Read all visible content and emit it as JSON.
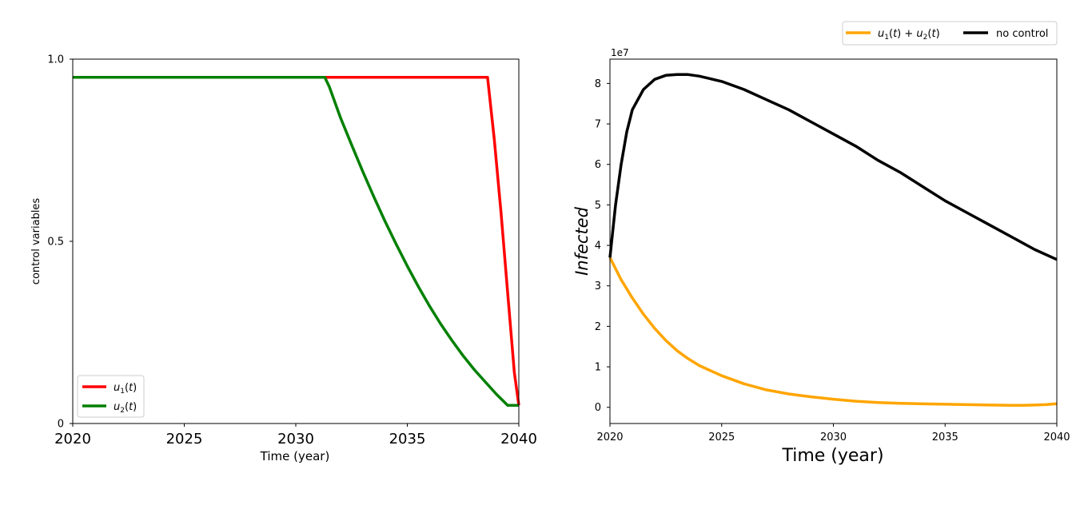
{
  "chart_data": [
    {
      "type": "line",
      "title": "",
      "xlabel": "Time (year)",
      "ylabel": "control variables",
      "xlim": [
        2020,
        2040
      ],
      "ylim": [
        0,
        1
      ],
      "xticks": [
        "2020",
        "2025",
        "2030",
        "2035",
        "2040"
      ],
      "yticks": [
        "0",
        "0.5",
        "1.0"
      ],
      "legend_position": "lower-left",
      "series": [
        {
          "name": "u1(t)",
          "color": "#ff0000",
          "x": [
            2020,
            2038.6,
            2038.9,
            2039.2,
            2039.5,
            2039.8,
            2040
          ],
          "y": [
            0.95,
            0.95,
            0.78,
            0.58,
            0.36,
            0.14,
            0.05
          ]
        },
        {
          "name": "u2(t)",
          "color": "#008000",
          "x": [
            2020,
            2031.3,
            2031.5,
            2032,
            2032.5,
            2033,
            2033.5,
            2034,
            2034.5,
            2035,
            2035.5,
            2036,
            2036.5,
            2037,
            2037.5,
            2038,
            2038.5,
            2039,
            2039.5,
            2040
          ],
          "y": [
            0.95,
            0.95,
            0.925,
            0.84,
            0.765,
            0.692,
            0.622,
            0.555,
            0.492,
            0.432,
            0.375,
            0.322,
            0.273,
            0.228,
            0.186,
            0.148,
            0.114,
            0.08,
            0.05,
            0.05
          ]
        }
      ]
    },
    {
      "type": "line",
      "title": "",
      "xlabel": "Time (year)",
      "ylabel": "Infected",
      "xlim": [
        2020,
        2040
      ],
      "ylim": [
        -0.4,
        8.6
      ],
      "y_scale_label": "1e7",
      "xticks": [
        "2020",
        "2025",
        "2030",
        "2035",
        "2040"
      ],
      "yticks": [
        "0",
        "1",
        "2",
        "3",
        "4",
        "5",
        "6",
        "7",
        "8"
      ],
      "legend_position": "upper-right outside",
      "series": [
        {
          "name": "u1(t) + u2(t)",
          "color": "#ffa500",
          "x": [
            2020,
            2020.5,
            2021,
            2021.5,
            2022,
            2022.5,
            2023,
            2023.5,
            2024,
            2025,
            2026,
            2027,
            2028,
            2029,
            2030,
            2031,
            2032,
            2033,
            2034,
            2035,
            2036,
            2037,
            2038,
            2038.5,
            2039,
            2039.5,
            2040
          ],
          "y": [
            3.7,
            3.15,
            2.7,
            2.3,
            1.95,
            1.65,
            1.4,
            1.2,
            1.03,
            0.78,
            0.58,
            0.43,
            0.33,
            0.26,
            0.2,
            0.15,
            0.12,
            0.1,
            0.085,
            0.075,
            0.065,
            0.055,
            0.05,
            0.05,
            0.055,
            0.065,
            0.09
          ]
        },
        {
          "name": "no control",
          "color": "#000000",
          "x": [
            2020,
            2020.25,
            2020.5,
            2020.75,
            2021,
            2021.5,
            2022,
            2022.5,
            2023,
            2023.5,
            2024,
            2025,
            2026,
            2027,
            2028,
            2029,
            2030,
            2031,
            2032,
            2033,
            2034,
            2035,
            2036,
            2037,
            2038,
            2039,
            2040
          ],
          "y": [
            3.7,
            5.0,
            6.0,
            6.8,
            7.35,
            7.85,
            8.1,
            8.2,
            8.22,
            8.22,
            8.18,
            8.05,
            7.85,
            7.6,
            7.35,
            7.05,
            6.75,
            6.45,
            6.1,
            5.8,
            5.45,
            5.1,
            4.8,
            4.5,
            4.2,
            3.9,
            3.65
          ]
        }
      ]
    }
  ]
}
